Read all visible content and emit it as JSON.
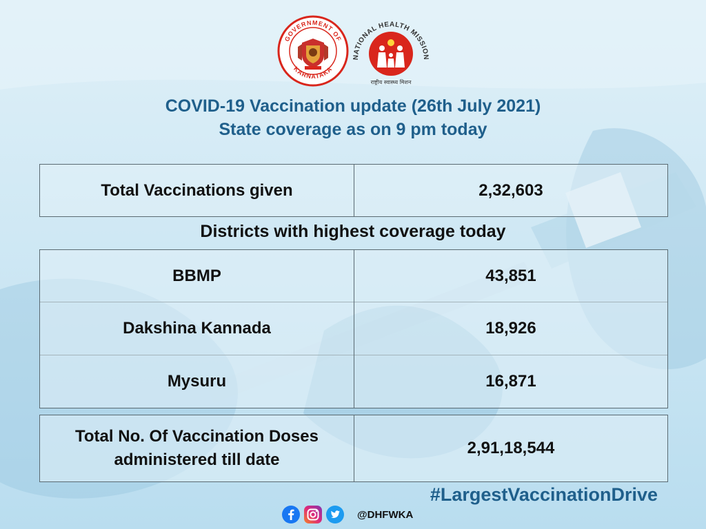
{
  "title": {
    "line1": "COVID-19 Vaccination update (26th July 2021)",
    "line2": "State coverage as on 9 pm today"
  },
  "logos": {
    "karnataka_top": "GOVERNMENT OF",
    "karnataka_bottom": "KARNATAKA",
    "nhm_text": "NATIONAL HEALTH MISSION",
    "nhm_hindi": "राष्ट्रीय स्वास्थ्य मिशन"
  },
  "total_vaccinations": {
    "label": "Total Vaccinations given",
    "value": "2,32,603"
  },
  "section_heading": "Districts with highest coverage today",
  "districts": [
    {
      "name": "BBMP",
      "value": "43,851"
    },
    {
      "name": "Dakshina Kannada",
      "value": "18,926"
    },
    {
      "name": "Mysuru",
      "value": "16,871"
    }
  ],
  "total_doses": {
    "label_line1": "Total No. Of Vaccination Doses",
    "label_line2": "administered till date",
    "value": "2,91,18,544"
  },
  "hashtag": "#LargestVaccinationDrive",
  "social": {
    "icons": [
      "facebook-icon",
      "instagram-icon",
      "twitter-icon"
    ],
    "handle": "@DHFWKA"
  },
  "colors": {
    "title": "#1f5f8b",
    "hashtag": "#1f5f8b",
    "table_border": "#5a6a72",
    "nhm_red": "#d9261c"
  }
}
